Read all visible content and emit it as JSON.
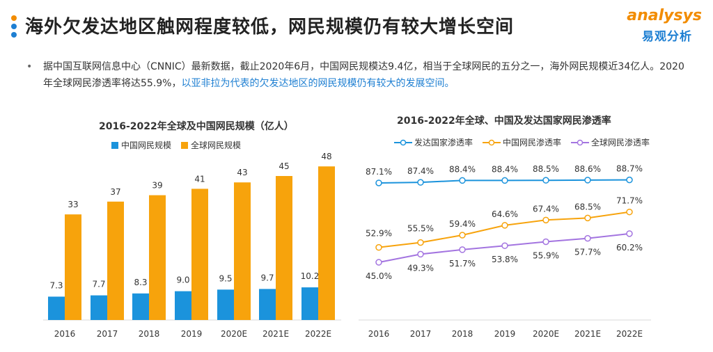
{
  "header": {
    "title": "海外欠发达地区触网程度较低，网民规模仍有较大增长空间",
    "dot_colors": [
      "#f28c00",
      "#1e7fd2",
      "#1e7fd2"
    ]
  },
  "logo": {
    "en": "analysys",
    "cn": "易观分析"
  },
  "summary": {
    "text_plain": "据中国互联网信息中心（CNNIC）最新数据，截止2020年6月，中国网民规模达9.4亿，相当于全球网民的五分之一，海外网民规模近34亿人。2020年全球网民渗透率将达55.9%，",
    "text_highlight": "以亚非拉为代表的欠发达地区的网民规模仍有较大的发展空间。"
  },
  "colors": {
    "blue": "#1b93dc",
    "orange": "#f7a30c",
    "purple": "#a374e0",
    "accent": "#1e7fd2"
  },
  "chart_data": [
    {
      "type": "bar",
      "title": "2016-2022年全球及中国网民规模（亿人）",
      "categories": [
        "2016",
        "2017",
        "2018",
        "2019",
        "2020E",
        "2021E",
        "2022E"
      ],
      "series": [
        {
          "name": "中国网民规模",
          "values": [
            7.3,
            7.7,
            8.3,
            9.0,
            9.5,
            9.7,
            10.2
          ],
          "labels": [
            "7.3",
            "7.7",
            "8.3",
            "9.0",
            "9.5",
            "9.7",
            "10.2"
          ]
        },
        {
          "name": "全球网民规模",
          "values": [
            33,
            37,
            39,
            41,
            43,
            45,
            48
          ],
          "labels": [
            "33",
            "37",
            "39",
            "41",
            "43",
            "45",
            "48"
          ]
        }
      ],
      "ylim": [
        0,
        50
      ],
      "grid": false,
      "legend": "top"
    },
    {
      "type": "line",
      "title": "2016-2022年全球、中国及发达国家网民渗透率",
      "categories": [
        "2016",
        "2017",
        "2018",
        "2019",
        "2020E",
        "2021E",
        "2022E"
      ],
      "series": [
        {
          "name": "发达国家渗透率",
          "values": [
            87.1,
            87.4,
            88.4,
            88.4,
            88.5,
            88.6,
            88.7
          ],
          "labels": [
            "87.1%",
            "87.4%",
            "88.4%",
            "88.4%",
            "88.5%",
            "88.6%",
            "88.7%"
          ]
        },
        {
          "name": "中国网民渗透率",
          "values": [
            52.9,
            55.5,
            59.4,
            64.6,
            67.4,
            68.5,
            71.7
          ],
          "labels": [
            "52.9%",
            "55.5%",
            "59.4%",
            "64.6%",
            "67.4%",
            "68.5%",
            "71.7%"
          ]
        },
        {
          "name": "全球网民渗透率",
          "values": [
            45.0,
            49.3,
            51.7,
            53.8,
            55.9,
            57.7,
            60.2
          ],
          "labels": [
            "45.0%",
            "49.3%",
            "51.7%",
            "53.8%",
            "55.9%",
            "57.7%",
            "60.2%"
          ]
        }
      ],
      "grid": false,
      "legend": "top"
    }
  ]
}
